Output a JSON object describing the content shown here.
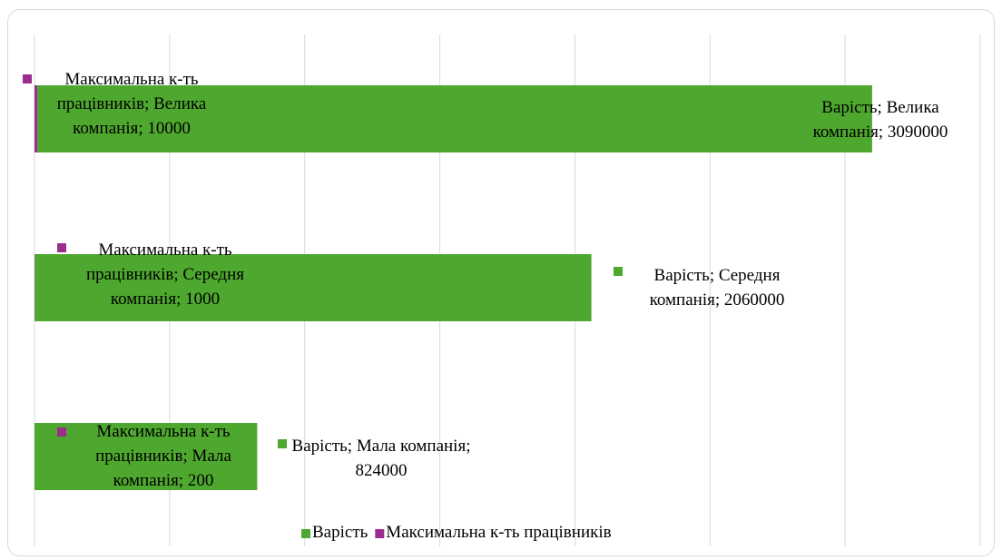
{
  "chart_data": {
    "type": "stacked-bar-horizontal",
    "series": [
      {
        "name": "Максимальна к-ть працівників",
        "color": "#9b2d8f",
        "values": [
          10000,
          1000,
          200
        ],
        "value_labels": [
          "Максимальна к-ть працівників; Велика компанія; 10000",
          "Максимальна к-ть працівників; Середня компанія; 1000",
          "Максимальна к-ть працівників; Мала компанія; 200"
        ]
      },
      {
        "name": "Варість",
        "color": "#4ea72e",
        "values": [
          3090000,
          2060000,
          824000
        ],
        "value_labels": [
          "Варість; Велика компанія; 3090000",
          "Варість; Середня компанія; 2060000",
          "Варість; Мала компанія; 824000"
        ]
      }
    ],
    "legend_order": [
      1,
      0
    ],
    "xlim": [
      0,
      3500000
    ],
    "xticks": [
      0,
      500000,
      1000000,
      1500000,
      2000000,
      2500000,
      3000000,
      3500000
    ],
    "grid": true
  }
}
